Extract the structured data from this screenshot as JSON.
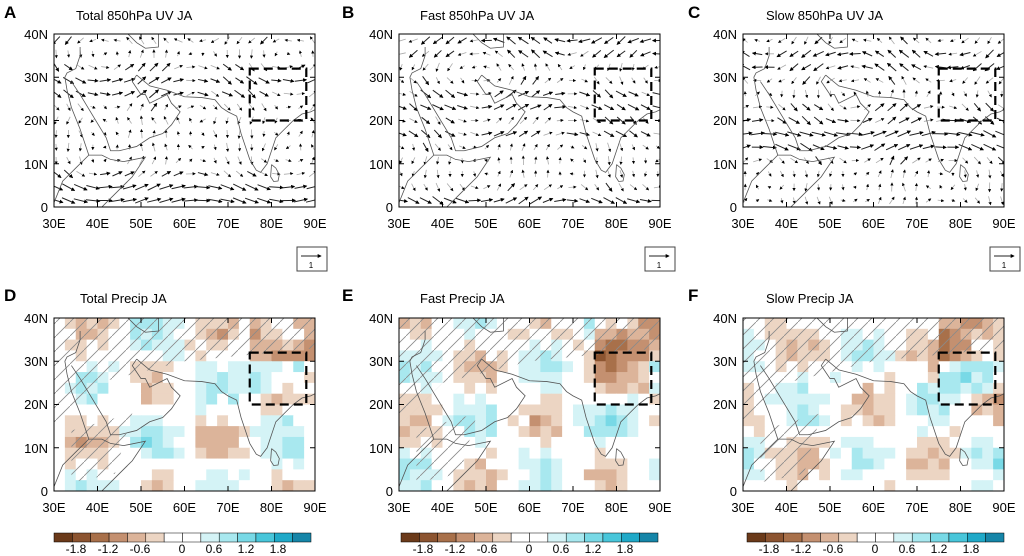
{
  "chart_data": [
    {
      "letter": "A",
      "title": "Total 850hPa UV JA",
      "type": "vector",
      "box_lon": [
        75,
        88
      ],
      "box_lat": [
        20,
        32
      ],
      "ref_vector": "1"
    },
    {
      "letter": "B",
      "title": "Fast 850hPa UV JA",
      "type": "vector",
      "box_lon": [
        75,
        88
      ],
      "box_lat": [
        20,
        32
      ],
      "ref_vector": "1"
    },
    {
      "letter": "C",
      "title": "Slow 850hPa UV JA",
      "type": "vector",
      "box_lon": [
        75,
        88
      ],
      "box_lat": [
        20,
        32
      ],
      "ref_vector": "1"
    },
    {
      "letter": "D",
      "title": "Total Precip JA",
      "type": "heatmap",
      "box_lon": [
        75,
        88
      ],
      "box_lat": [
        20,
        32
      ],
      "colorbar": {
        "labels": [
          "-1.8",
          "-1.2",
          "-0.6",
          "0",
          "0.6",
          "1.2",
          "1.8"
        ]
      }
    },
    {
      "letter": "E",
      "title": "Fast Precip JA",
      "type": "heatmap",
      "box_lon": [
        75,
        88
      ],
      "box_lat": [
        20,
        32
      ],
      "colorbar": {
        "labels": [
          "-1.8",
          "-1.2",
          "-0.6",
          "0",
          "0.6",
          "1.2",
          "1.8"
        ]
      }
    },
    {
      "letter": "F",
      "title": "Slow Precip JA",
      "type": "heatmap",
      "box_lon": [
        75,
        88
      ],
      "box_lat": [
        20,
        32
      ],
      "colorbar": {
        "labels": [
          "-1.8",
          "-1.2",
          "-0.6",
          "0",
          "0.6",
          "1.2",
          "1.8"
        ]
      }
    }
  ],
  "axes": {
    "x_ticks": [
      "30E",
      "40E",
      "50E",
      "60E",
      "70E",
      "80E",
      "90E"
    ],
    "y_ticks": [
      "0",
      "10N",
      "20N",
      "30N",
      "40N"
    ],
    "xlim": [
      30,
      90
    ],
    "ylim": [
      0,
      40
    ]
  },
  "colors": {
    "neg": [
      "#6b3a1a",
      "#8c5430",
      "#a8704a",
      "#c49070",
      "#dcb49a",
      "#ecd5c3"
    ],
    "pos": [
      "#d4f3f6",
      "#a8e8ef",
      "#78d9e6",
      "#48c6da",
      "#1fa9c8",
      "#1585a8"
    ],
    "zero": "#ffffff"
  }
}
